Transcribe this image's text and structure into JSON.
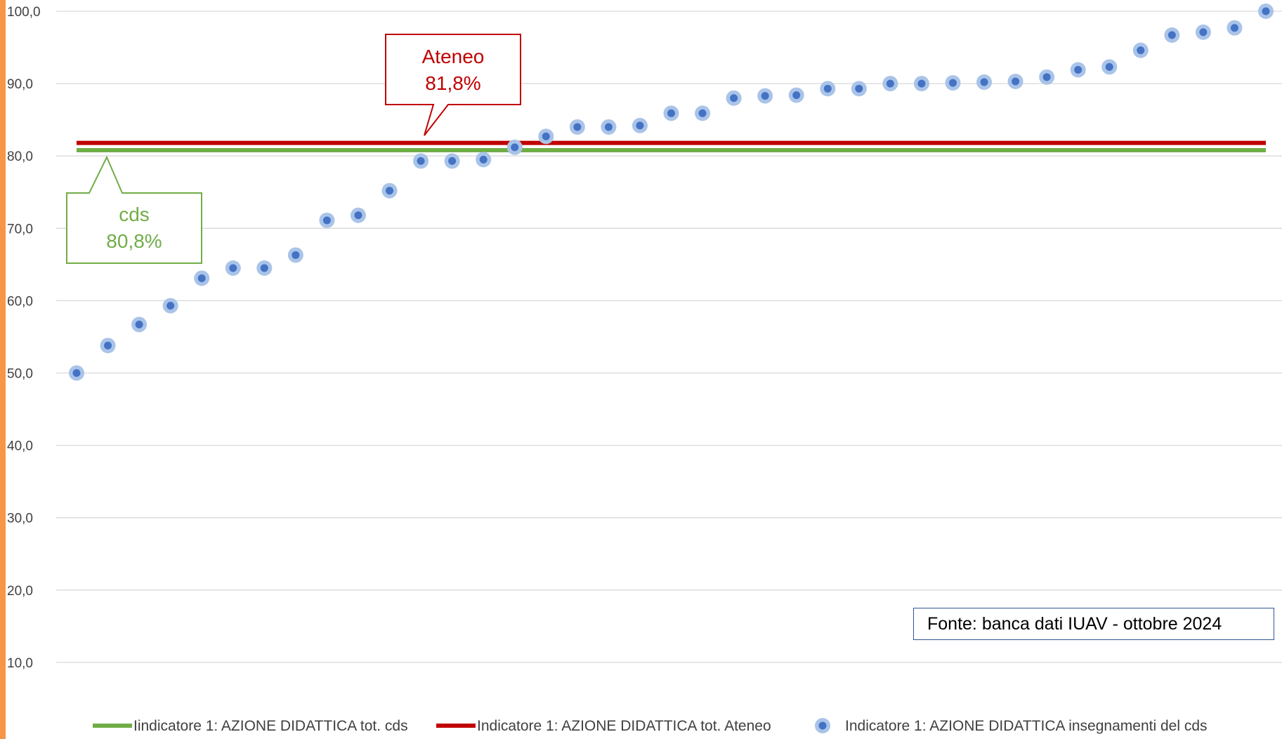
{
  "colors": {
    "accent_bar": "#f79646",
    "cds": "#70ad47",
    "ateneo": "#c00000",
    "points": "#4472c4",
    "points_halo": "#a9c4e8",
    "grid": "#d9d9d9"
  },
  "source_note": "Fonte: banca dati IUAV - ottobre 2024",
  "callouts": {
    "ateneo": {
      "title": "Ateneo",
      "value": "81,8%"
    },
    "cds": {
      "title": "cds",
      "value": "80,8%"
    }
  },
  "chart_data": {
    "type": "scatter",
    "ylim": [
      0,
      100
    ],
    "y_ticks": [
      "10,0",
      "20,0",
      "30,0",
      "40,0",
      "50,0",
      "60,0",
      "70,0",
      "80,0",
      "90,0",
      "100,0"
    ],
    "y_tick_values": [
      10,
      20,
      30,
      40,
      50,
      60,
      70,
      80,
      90,
      100
    ],
    "grid": true,
    "legend_position": "bottom",
    "x_count": 39,
    "reference_lines": [
      {
        "name": "Iindicatore 1: AZIONE DIDATTICA tot. cds",
        "value": 80.8,
        "color": "#70ad47"
      },
      {
        "name": "Indicatore 1: AZIONE DIDATTICA tot. Ateneo",
        "value": 81.8,
        "color": "#c00000"
      }
    ],
    "series": [
      {
        "name": "Indicatore 1: AZIONE DIDATTICA insegnamenti del cds",
        "x": [
          1,
          2,
          3,
          4,
          5,
          6,
          7,
          8,
          9,
          10,
          11,
          12,
          13,
          14,
          15,
          16,
          17,
          18,
          19,
          20,
          21,
          22,
          23,
          24,
          25,
          26,
          27,
          28,
          29,
          30,
          31,
          32,
          33,
          34,
          35,
          36,
          37,
          38,
          39
        ],
        "values": [
          50.0,
          53.8,
          56.7,
          59.3,
          63.1,
          64.5,
          64.5,
          66.3,
          71.1,
          71.8,
          75.2,
          79.3,
          79.3,
          79.5,
          81.2,
          82.7,
          84.0,
          84.0,
          84.2,
          85.9,
          85.9,
          88.0,
          88.3,
          88.4,
          89.3,
          89.3,
          90.0,
          90.0,
          90.1,
          90.2,
          90.3,
          90.9,
          91.9,
          92.3,
          94.6,
          96.7,
          97.1,
          97.7,
          100.0
        ]
      }
    ]
  }
}
